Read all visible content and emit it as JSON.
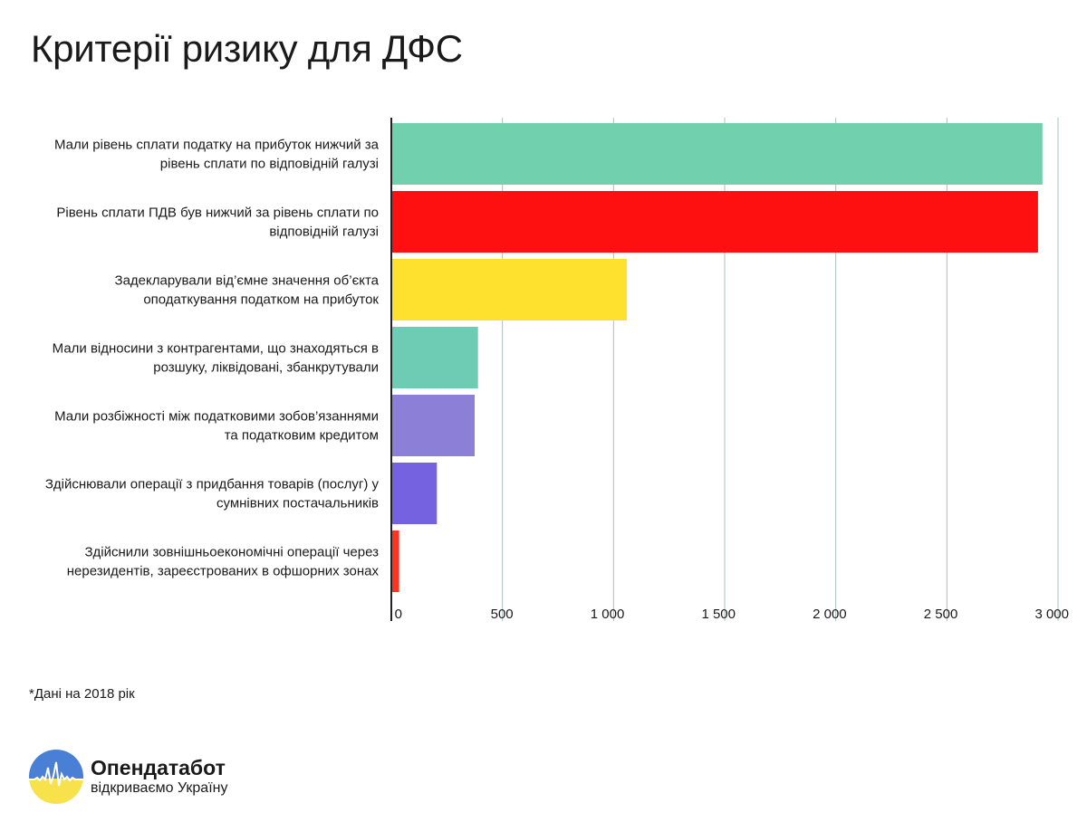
{
  "title": "Критерії ризику для ДФС",
  "footnote": "*Дані на 2018 рік",
  "brand": {
    "name": "Опендатабот",
    "tagline": "відкриваємо Україну",
    "colors": {
      "blue": "#4a7fd6",
      "yellow": "#f7e24b",
      "line": "#ffffff"
    }
  },
  "chart_data": {
    "type": "bar",
    "orientation": "horizontal",
    "title": "Критерії ризику для ДФС",
    "xlabel": "",
    "ylabel": "",
    "xlim": [
      0,
      3000
    ],
    "grid": true,
    "legend": "none",
    "categories": [
      "Мали рівень сплати податку на прибуток нижчий за рівень сплати по відповідній галузі",
      "Рівень сплати ПДВ був нижчий за рівень сплати по відповідній галузі",
      "Задекларували від'ємне значення об'єкта оподаткування податком на прибуток",
      "Мали відносини з контрагентами, що знаходяться в розшуку, ліквідовані, збанкрутували",
      "Мали розбіжності між податковими зобов'язаннями та податковим кредитом",
      "Здійснювали операції з придбання товарів (послуг) у сумнівних постачальників",
      "Здійснили зовнішньоекономічні операції через нерезидентів, зареєстрованих в офшорних зонах"
    ],
    "label_lines": [
      [
        "Мали рівень сплати податку на прибуток нижчий за",
        "рівень сплати по відповідній галузі"
      ],
      [
        "Рівень сплати ПДВ був нижчий за рівень сплати по",
        "відповідній галузі"
      ],
      [
        "Задекларували від’ємне значення об’єкта",
        "оподаткування податком на прибуток"
      ],
      [
        "Мали відносини з контрагентами, що знаходяться в",
        "розшуку, ліквідовані, збанкрутували"
      ],
      [
        "Мали розбіжності між податковими зобов’язаннями",
        "та податковим кредитом"
      ],
      [
        "Здійснювали операції з придбання товарів (послуг) у",
        "сумнівних постачальників"
      ],
      [
        "Здійснили зовнішньоекономічні операції через",
        "нерезидентів, зареєстрованих в офшорних зонах"
      ]
    ],
    "values": [
      2930,
      2910,
      1060,
      390,
      375,
      205,
      35
    ],
    "colors": [
      "#71d1ae",
      "#ff1010",
      "#fee12e",
      "#6ecbb4",
      "#8b7fd8",
      "#7562e0",
      "#ff3320"
    ],
    "ticks": [
      0,
      500,
      1000,
      1500,
      2000,
      2500,
      3000
    ],
    "tick_labels": [
      "0",
      "500",
      "1 000",
      "1 500",
      "2 000",
      "2 500",
      "3 000"
    ],
    "grid_color": "#a9c2bf",
    "axis_color": "#222222"
  }
}
